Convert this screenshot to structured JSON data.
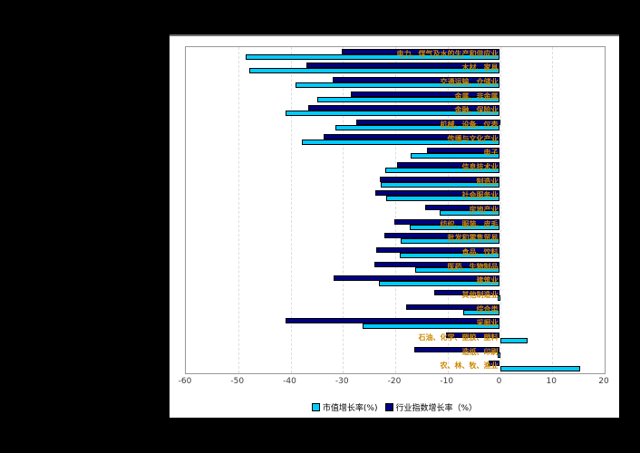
{
  "window": {
    "background_color": "#000000",
    "chart_background_color": "#ffffff"
  },
  "chart_data": {
    "type": "bar",
    "orientation": "horizontal",
    "title": "",
    "xlabel": "",
    "ylabel": "",
    "xlim": [
      -60,
      20
    ],
    "xticks": [
      -60,
      -50,
      -40,
      -30,
      -20,
      -10,
      0,
      10,
      20
    ],
    "grid": "vertical-dashed",
    "gridline_color": "#dddddd",
    "legend_position": "bottom-center",
    "category_label_color": "#CC8800",
    "categories": [
      "电力、煤气及水的生产和供应业",
      "木材、家具",
      "交通运输、仓储业",
      "金属、非金属",
      "金融、保险业",
      "机械、设备、仪表",
      "传播与文化产业",
      "电子",
      "信息技术业",
      "制造业",
      "社会服务业",
      "房地产业",
      "纺织、服装、皮毛",
      "批发和零售贸易",
      "食品、饮料",
      "医药、生物制品",
      "建筑业",
      "其他制造业",
      "综合类",
      "采掘业",
      "石油、化学、塑胶、塑料",
      "造纸、印刷",
      "农、林、牧、渔业"
    ],
    "series": [
      {
        "name": "市值增长率(%)",
        "color": "#00CCFF",
        "values": [
          -48.5,
          -47.9,
          -39.0,
          -34.9,
          -41.0,
          -31.5,
          -37.8,
          -17.1,
          -21.9,
          -22.7,
          -21.7,
          -11.5,
          -17.2,
          -18.9,
          -19.2,
          -16.2,
          -23.2,
          -0.5,
          -7.0,
          -26.3,
          5.2,
          -0.3,
          15.3
        ]
      },
      {
        "name": "行业指数增长率（%）",
        "color": "#000080",
        "values": [
          -30.3,
          -37.0,
          -32.0,
          -28.5,
          -36.6,
          -27.5,
          -33.7,
          -14.0,
          -19.7,
          -23.0,
          -23.8,
          -14.2,
          -20.1,
          -22.0,
          -23.7,
          -23.9,
          -31.7,
          -12.6,
          -17.9,
          -40.9,
          -10.3,
          -16.4,
          -2.1
        ]
      }
    ]
  }
}
